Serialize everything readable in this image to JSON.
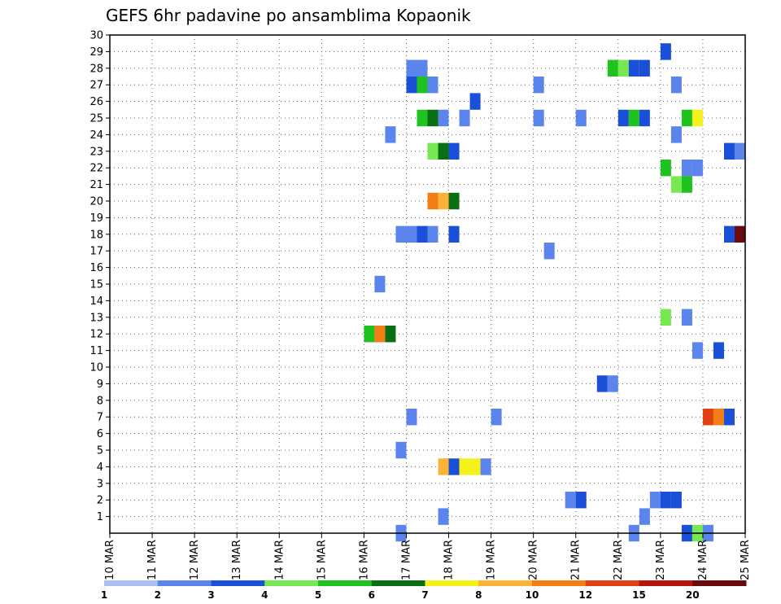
{
  "chart_data": {
    "type": "heatmap",
    "title": "GEFS 6hr padavine po ansamblima Kopaonik",
    "xlabel": "",
    "ylabel": "",
    "x_dates": [
      "10 MAR",
      "11 MAR",
      "12 MAR",
      "13 MAR",
      "14 MAR",
      "15 MAR",
      "16 MAR",
      "17 MAR",
      "18 MAR",
      "19 MAR",
      "20 MAR",
      "21 MAR",
      "22 MAR",
      "23 MAR",
      "24 MAR",
      "25 MAR"
    ],
    "time_step_hours": 6,
    "xlim_days": [
      0,
      15
    ],
    "y_labels": [
      1,
      2,
      3,
      4,
      5,
      6,
      7,
      8,
      9,
      10,
      11,
      12,
      13,
      14,
      15,
      16,
      17,
      18,
      19,
      20,
      21,
      22,
      23,
      24,
      25,
      26,
      27,
      28,
      29,
      30
    ],
    "ylim": [
      0,
      30
    ],
    "grid": "dotted",
    "colorbar": {
      "labels": [
        "1",
        "2",
        "3",
        "4",
        "5",
        "6",
        "7",
        "8",
        "10",
        "12",
        "15",
        "20"
      ],
      "colors": [
        "#aabff2",
        "#5b85ec",
        "#1a4fd8",
        "#77e852",
        "#1fc21f",
        "#0a6e12",
        "#f5f21a",
        "#fbb236",
        "#f47d16",
        "#e44112",
        "#b5150d",
        "#6b0a0a"
      ]
    },
    "cells": [
      [
        0,
        6.75,
        1
      ],
      [
        0,
        12.25,
        1
      ],
      [
        0,
        13.5,
        2
      ],
      [
        0,
        13.75,
        3
      ],
      [
        0,
        14,
        1
      ],
      [
        1,
        7.75,
        1
      ],
      [
        1,
        12.5,
        1
      ],
      [
        2,
        10.75,
        1
      ],
      [
        2,
        11,
        2
      ],
      [
        2,
        12.75,
        1
      ],
      [
        2,
        13,
        2
      ],
      [
        2,
        13.25,
        2
      ],
      [
        4,
        7.75,
        7
      ],
      [
        4,
        8,
        2
      ],
      [
        4,
        8.25,
        6
      ],
      [
        4,
        8.5,
        6
      ],
      [
        4,
        8.75,
        1
      ],
      [
        5,
        6.75,
        1
      ],
      [
        7,
        7,
        1
      ],
      [
        7,
        9,
        1
      ],
      [
        7,
        14,
        9
      ],
      [
        7,
        14.25,
        8
      ],
      [
        7,
        14.5,
        2
      ],
      [
        9,
        11.5,
        2
      ],
      [
        9,
        11.75,
        1
      ],
      [
        11,
        13.75,
        1
      ],
      [
        11,
        14.25,
        2
      ],
      [
        12,
        6,
        4
      ],
      [
        12,
        6.25,
        8
      ],
      [
        12,
        6.5,
        5
      ],
      [
        13,
        13,
        3
      ],
      [
        13,
        13.5,
        1
      ],
      [
        15,
        6.25,
        1
      ],
      [
        17,
        10.25,
        1
      ],
      [
        18,
        6.75,
        1
      ],
      [
        18,
        7,
        1
      ],
      [
        18,
        7.25,
        2
      ],
      [
        18,
        7.5,
        1
      ],
      [
        18,
        8,
        2
      ],
      [
        18,
        14.5,
        2
      ],
      [
        18,
        14.75,
        11
      ],
      [
        20,
        7.5,
        8
      ],
      [
        20,
        7.75,
        7
      ],
      [
        20,
        8,
        5
      ],
      [
        21,
        13.25,
        3
      ],
      [
        21,
        13.5,
        4
      ],
      [
        22,
        13,
        4
      ],
      [
        22,
        13.5,
        1
      ],
      [
        22,
        13.75,
        1
      ],
      [
        23,
        7.5,
        3
      ],
      [
        23,
        7.75,
        5
      ],
      [
        23,
        8,
        2
      ],
      [
        23,
        14.5,
        2
      ],
      [
        23,
        14.75,
        1
      ],
      [
        24,
        6.5,
        1
      ],
      [
        24,
        13.25,
        1
      ],
      [
        25,
        7.25,
        4
      ],
      [
        25,
        7.5,
        5
      ],
      [
        25,
        7.75,
        1
      ],
      [
        25,
        8.25,
        1
      ],
      [
        25,
        10,
        1
      ],
      [
        25,
        11,
        1
      ],
      [
        25,
        12,
        2
      ],
      [
        25,
        12.25,
        4
      ],
      [
        25,
        12.5,
        2
      ],
      [
        25,
        13.5,
        4
      ],
      [
        25,
        13.75,
        6
      ],
      [
        26,
        8.5,
        2
      ],
      [
        27,
        7,
        2
      ],
      [
        27,
        7.25,
        4
      ],
      [
        27,
        7.5,
        1
      ],
      [
        27,
        10,
        1
      ],
      [
        27,
        13.25,
        1
      ],
      [
        28,
        7,
        1
      ],
      [
        28,
        7.25,
        1
      ],
      [
        28,
        11.75,
        4
      ],
      [
        28,
        12,
        3
      ],
      [
        28,
        12.25,
        2
      ],
      [
        28,
        12.5,
        2
      ],
      [
        29,
        13,
        2
      ]
    ]
  }
}
